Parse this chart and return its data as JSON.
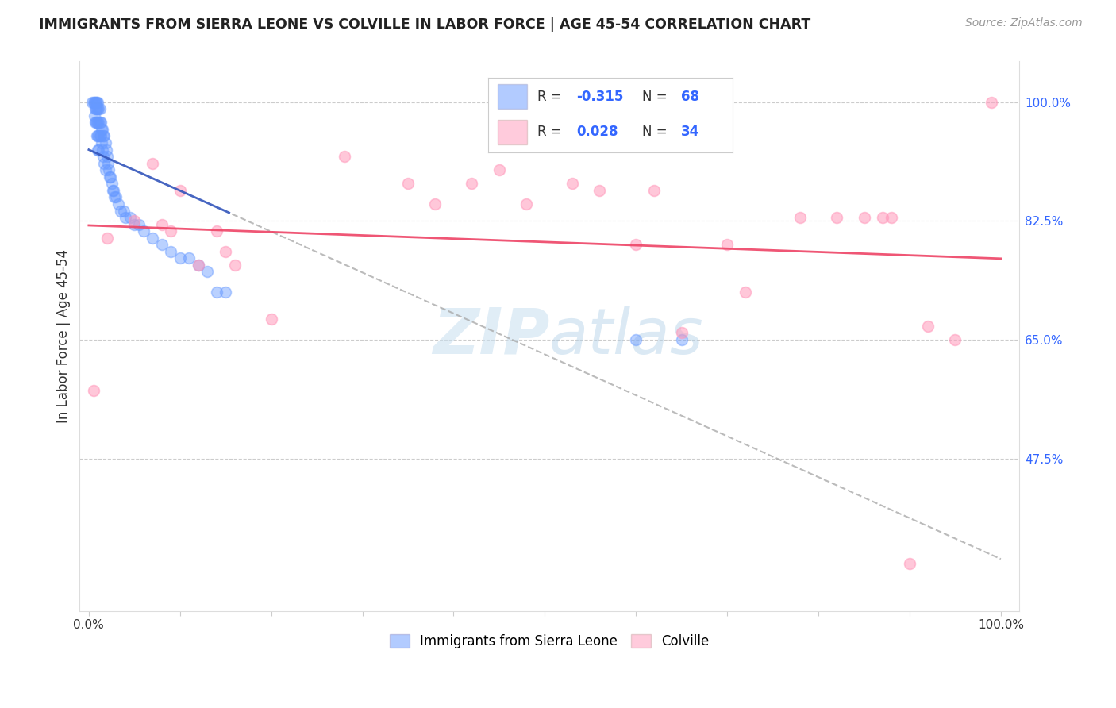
{
  "title": "IMMIGRANTS FROM SIERRA LEONE VS COLVILLE IN LABOR FORCE | AGE 45-54 CORRELATION CHART",
  "source": "Source: ZipAtlas.com",
  "ylabel": "In Labor Force | Age 45-54",
  "blue_R": -0.315,
  "blue_N": 68,
  "pink_R": 0.028,
  "pink_N": 34,
  "blue_color": "#6699ff",
  "pink_color": "#ff99bb",
  "blue_line_color": "#3355bb",
  "pink_line_color": "#ee4466",
  "watermark_zip": "ZIP",
  "watermark_atlas": "atlas",
  "legend_R_label_color": "#333333",
  "legend_value_color": "#3366ff",
  "right_tick_color": "#3366ff",
  "ytick_vals": [
    0.325,
    0.475,
    0.65,
    0.825,
    1.0
  ],
  "ytick_labels": [
    "",
    "47.5%",
    "65.0%",
    "82.5%",
    "100.0%"
  ],
  "blue_scatter_x": [
    0.004,
    0.005,
    0.006,
    0.006,
    0.007,
    0.007,
    0.007,
    0.008,
    0.008,
    0.008,
    0.009,
    0.009,
    0.009,
    0.009,
    0.01,
    0.01,
    0.01,
    0.01,
    0.01,
    0.011,
    0.011,
    0.011,
    0.011,
    0.012,
    0.012,
    0.012,
    0.013,
    0.013,
    0.014,
    0.014,
    0.015,
    0.015,
    0.016,
    0.016,
    0.017,
    0.017,
    0.018,
    0.018,
    0.019,
    0.02,
    0.021,
    0.022,
    0.023,
    0.024,
    0.025,
    0.026,
    0.027,
    0.028,
    0.03,
    0.032,
    0.035,
    0.038,
    0.04,
    0.045,
    0.05,
    0.055,
    0.06,
    0.07,
    0.08,
    0.09,
    0.1,
    0.11,
    0.12,
    0.13,
    0.14,
    0.15,
    0.6,
    0.65
  ],
  "blue_scatter_y": [
    1.0,
    1.0,
    1.0,
    0.98,
    1.0,
    0.99,
    0.97,
    1.0,
    0.99,
    0.97,
    1.0,
    0.99,
    0.97,
    0.95,
    1.0,
    0.99,
    0.97,
    0.95,
    0.93,
    0.99,
    0.97,
    0.95,
    0.93,
    0.99,
    0.97,
    0.95,
    0.97,
    0.95,
    0.96,
    0.94,
    0.96,
    0.93,
    0.95,
    0.92,
    0.95,
    0.91,
    0.94,
    0.9,
    0.93,
    0.92,
    0.91,
    0.9,
    0.89,
    0.89,
    0.88,
    0.87,
    0.87,
    0.86,
    0.86,
    0.85,
    0.84,
    0.84,
    0.83,
    0.83,
    0.82,
    0.82,
    0.81,
    0.8,
    0.79,
    0.78,
    0.77,
    0.77,
    0.76,
    0.75,
    0.72,
    0.72,
    0.65,
    0.65
  ],
  "pink_scatter_x": [
    0.005,
    0.02,
    0.05,
    0.07,
    0.08,
    0.09,
    0.1,
    0.12,
    0.14,
    0.15,
    0.16,
    0.2,
    0.28,
    0.35,
    0.38,
    0.42,
    0.45,
    0.48,
    0.53,
    0.56,
    0.6,
    0.62,
    0.65,
    0.7,
    0.72,
    0.78,
    0.82,
    0.85,
    0.87,
    0.88,
    0.9,
    0.92,
    0.95,
    0.99
  ],
  "pink_scatter_y": [
    0.575,
    0.8,
    0.825,
    0.91,
    0.82,
    0.81,
    0.87,
    0.76,
    0.81,
    0.78,
    0.76,
    0.68,
    0.92,
    0.88,
    0.85,
    0.88,
    0.9,
    0.85,
    0.88,
    0.87,
    0.79,
    0.87,
    0.66,
    0.79,
    0.72,
    0.83,
    0.83,
    0.83,
    0.83,
    0.83,
    0.32,
    0.67,
    0.65,
    1.0
  ]
}
